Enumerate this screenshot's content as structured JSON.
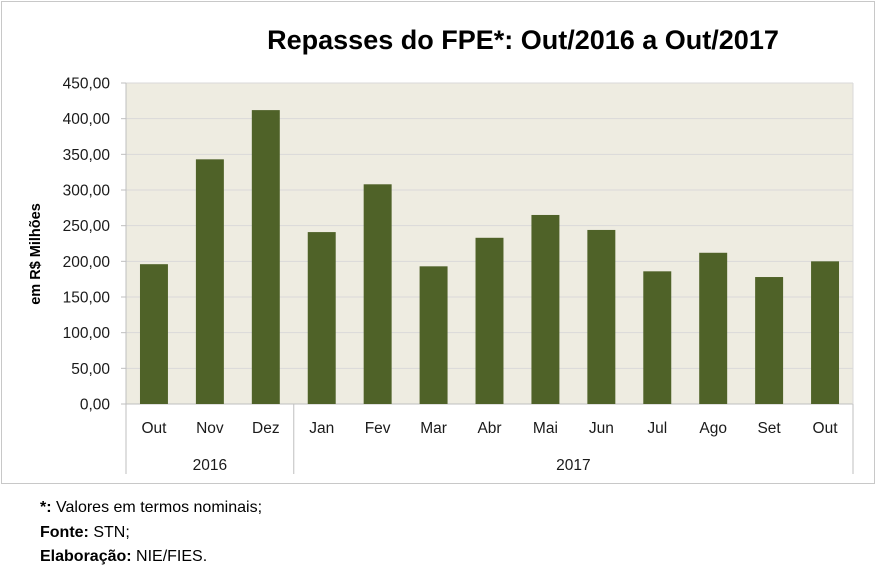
{
  "chart_data": {
    "type": "bar",
    "title": "Repasses do FPE*: Out/2016 a Out/2017",
    "ylabel": "em R$ Milhões",
    "xlabel": "",
    "ylim": [
      0,
      450
    ],
    "yticks": [
      0,
      50,
      100,
      150,
      200,
      250,
      300,
      350,
      400,
      450
    ],
    "ytick_labels": [
      "0,00",
      "50,00",
      "100,00",
      "150,00",
      "200,00",
      "250,00",
      "300,00",
      "350,00",
      "400,00",
      "450,00"
    ],
    "grid": true,
    "legend": "none",
    "categories": [
      "Out",
      "Nov",
      "Dez",
      "Jan",
      "Fev",
      "Mar",
      "Abr",
      "Mai",
      "Jun",
      "Jul",
      "Ago",
      "Set",
      "Out"
    ],
    "values": [
      196,
      343,
      412,
      241,
      308,
      193,
      233,
      265,
      244,
      186,
      212,
      178,
      200
    ],
    "groups": [
      {
        "label": "2016",
        "count": 3
      },
      {
        "label": "2017",
        "count": 10
      }
    ],
    "colors": {
      "bar": "#4f6228",
      "plot_bg": "#eeece1",
      "grid": "#d9d9d9",
      "axis": "#bfbfbf"
    }
  },
  "notes": {
    "asterisk_key": "*:",
    "asterisk_text": " Valores em termos nominais;",
    "source_key": "Fonte:",
    "source_text": " STN;",
    "author_key": "Elaboração:",
    "author_text": "  NIE/FIES."
  }
}
